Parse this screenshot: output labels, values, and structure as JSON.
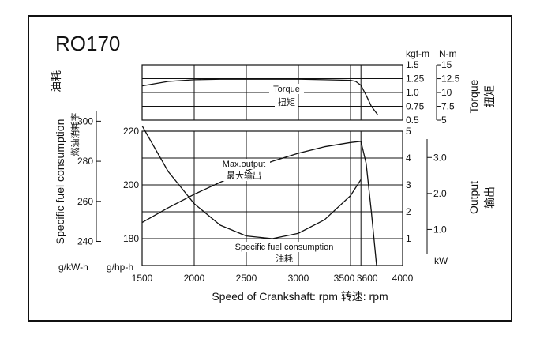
{
  "chart_data": {
    "type": "line",
    "title": "RO170",
    "x": {
      "label": "Speed of Crankshaft: rpm  转速: rpm",
      "range": [
        1500,
        4000
      ],
      "ticks": [
        "1500",
        "2000",
        "2500",
        "3000",
        "3500",
        "3600",
        "4000"
      ],
      "grid": true,
      "grid_values": [
        1500,
        2000,
        2500,
        3000,
        3500,
        3600,
        4000
      ]
    },
    "torque_panel": {
      "ylabel": "Torque 扭矩",
      "left_unit": "kgf-m",
      "right_unit": "N-m",
      "ylim": [
        0.5,
        1.5
      ],
      "ticks_kgfm": [
        "1.5",
        "1.25",
        "1.0",
        "0.75",
        "0.5"
      ],
      "tick_values_kgfm": [
        1.5,
        1.25,
        1.0,
        0.75,
        0.5
      ],
      "ticks_nm": [
        "15",
        "12.5",
        "10",
        "7.5",
        "5"
      ],
      "tick_values_nm": [
        15,
        12.5,
        10,
        7.5,
        5
      ],
      "series": [
        {
          "name": "Torque",
          "label_cn": "扭矩",
          "x": [
            1500,
            1750,
            2000,
            2250,
            2500,
            2750,
            3000,
            3250,
            3500,
            3550,
            3600,
            3650,
            3700,
            3760
          ],
          "y": [
            1.12,
            1.2,
            1.23,
            1.24,
            1.24,
            1.24,
            1.24,
            1.23,
            1.22,
            1.2,
            1.13,
            0.95,
            0.75,
            0.6
          ]
        }
      ]
    },
    "main_panel": {
      "output": {
        "label_en": "Output",
        "label_cn": "输出",
        "ylim": [
          0,
          5
        ],
        "ticks": [
          "5",
          "4",
          "3",
          "2",
          "1"
        ],
        "tick_values": [
          5,
          4,
          3,
          2,
          1
        ],
        "kw_unit": "kW",
        "kw_ticks": [
          "3.0",
          "2.0",
          "1.0"
        ],
        "kw_tick_values": [
          3.0,
          2.0,
          1.0
        ],
        "kw_ylim": [
          0,
          3.73
        ]
      },
      "sfc": {
        "ylabel": "Specific fuel consumption",
        "ylabel_cn": "燃油消耗率",
        "ylabel_cn_top": "油耗",
        "unit_gkwh": "g/kW-h",
        "unit_ghph": "g/hp-h",
        "ghph_ticks": [
          "220",
          "200",
          "180"
        ],
        "ghph_tick_values": [
          220,
          200,
          180
        ],
        "gkwh_ticks": [
          "300",
          "280",
          "260",
          "240"
        ],
        "gkwh_tick_values": [
          300,
          280,
          260,
          240
        ]
      },
      "series": [
        {
          "name": "Max.output",
          "label_cn": "最大输出",
          "axis": "output",
          "x": [
            1500,
            1750,
            2000,
            2250,
            2500,
            2750,
            3000,
            3250,
            3500,
            3600,
            3650,
            3700,
            3750
          ],
          "y": [
            1.6,
            2.15,
            2.65,
            3.1,
            3.52,
            3.88,
            4.18,
            4.42,
            4.58,
            4.62,
            3.8,
            2.0,
            0.0
          ]
        },
        {
          "name": "Specific fuel consumption",
          "label_cn": "油耗",
          "axis": "sfc_ghph",
          "x": [
            1500,
            1750,
            2000,
            2250,
            2500,
            2750,
            3000,
            3250,
            3500,
            3600
          ],
          "y": [
            222,
            205,
            193,
            185,
            181,
            180,
            182,
            187,
            196,
            202
          ]
        }
      ]
    }
  }
}
